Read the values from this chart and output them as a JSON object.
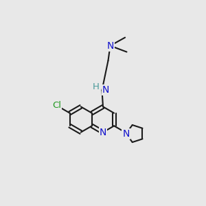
{
  "bg_color": "#e8e8e8",
  "bond_color": "#1a1a1a",
  "n_color": "#1111cc",
  "cl_color": "#229922",
  "nh_color": "#4a9a9a",
  "lw": 1.5,
  "figsize": [
    3.0,
    3.0
  ],
  "dpi": 100,
  "xlim": [
    0,
    10
  ],
  "ylim": [
    0,
    10
  ]
}
